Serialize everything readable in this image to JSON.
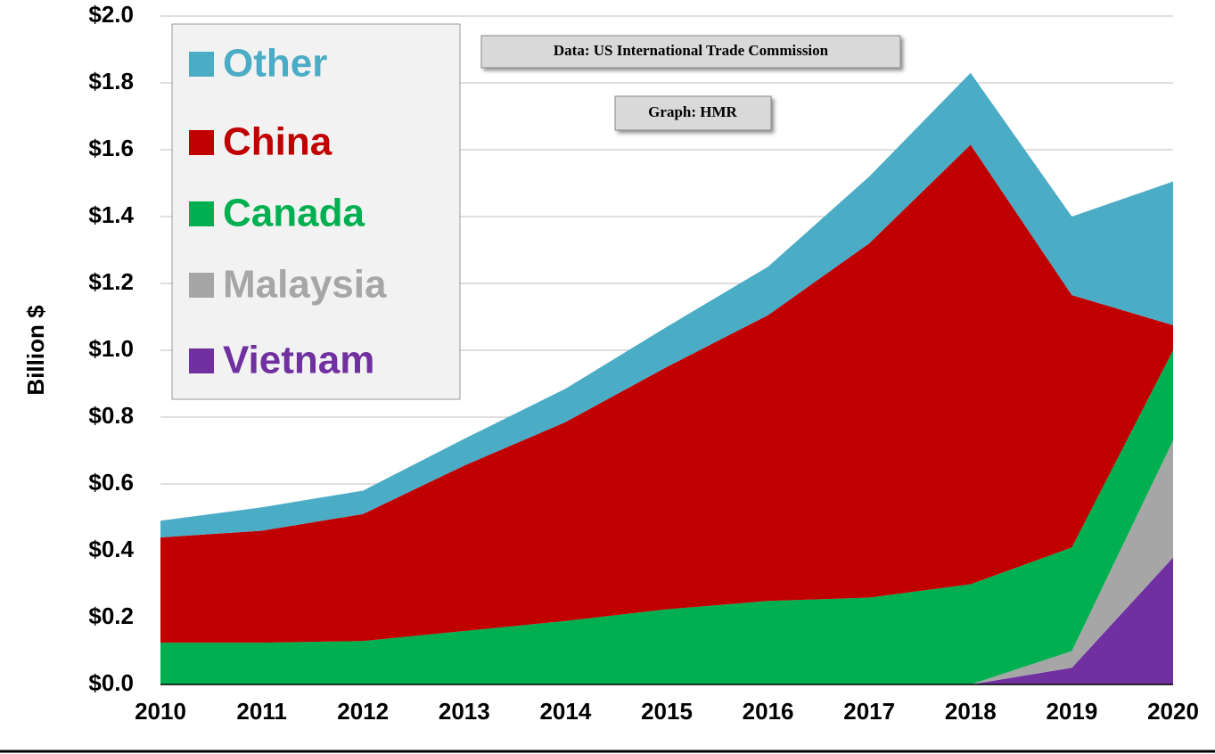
{
  "chart_data": {
    "type": "stacked-area",
    "y_label": "Billion $",
    "annotations": [
      "Data: US International Trade Commission",
      "Graph: HMR"
    ],
    "categories": [
      "2010",
      "2011",
      "2012",
      "2013",
      "2014",
      "2015",
      "2016",
      "2017",
      "2018",
      "2019",
      "2020"
    ],
    "series": [
      {
        "name": "Vietnam",
        "color": "#7030a0",
        "values": [
          0,
          0,
          0,
          0,
          0,
          0,
          0,
          0,
          0,
          0.05,
          0.38
        ]
      },
      {
        "name": "Malaysia",
        "color": "#a6a6a6",
        "values": [
          0,
          0,
          0,
          0,
          0,
          0,
          0,
          0,
          0,
          0.05,
          0.35
        ]
      },
      {
        "name": "Canada",
        "color": "#00b050",
        "values": [
          0.125,
          0.125,
          0.13,
          0.16,
          0.19,
          0.225,
          0.25,
          0.26,
          0.3,
          0.31,
          0.27
        ]
      },
      {
        "name": "China",
        "color": "#c00000",
        "values": [
          0.315,
          0.335,
          0.38,
          0.495,
          0.595,
          0.725,
          0.855,
          1.06,
          1.315,
          0.755,
          0.075
        ]
      },
      {
        "name": "Other",
        "color": "#4bacc6",
        "values": [
          0.05,
          0.07,
          0.07,
          0.08,
          0.1,
          0.12,
          0.145,
          0.2,
          0.215,
          0.235,
          0.43
        ]
      }
    ],
    "ylim": [
      0,
      2.0
    ],
    "yticks": [
      {
        "value": 0,
        "label": "$0.0"
      },
      {
        "value": 0.2,
        "label": "$0.2"
      },
      {
        "value": 0.4,
        "label": "$0.4"
      },
      {
        "value": 0.6,
        "label": "$0.6"
      },
      {
        "value": 0.8,
        "label": "$0.8"
      },
      {
        "value": 1.0,
        "label": "$1.0"
      },
      {
        "value": 1.2,
        "label": "$1.2"
      },
      {
        "value": 1.4,
        "label": "$1.4"
      },
      {
        "value": 1.6,
        "label": "$1.6"
      },
      {
        "value": 1.8,
        "label": "$1.8"
      },
      {
        "value": 2.0,
        "label": "$2.0"
      }
    ],
    "grid": true,
    "legend": "upper left"
  }
}
